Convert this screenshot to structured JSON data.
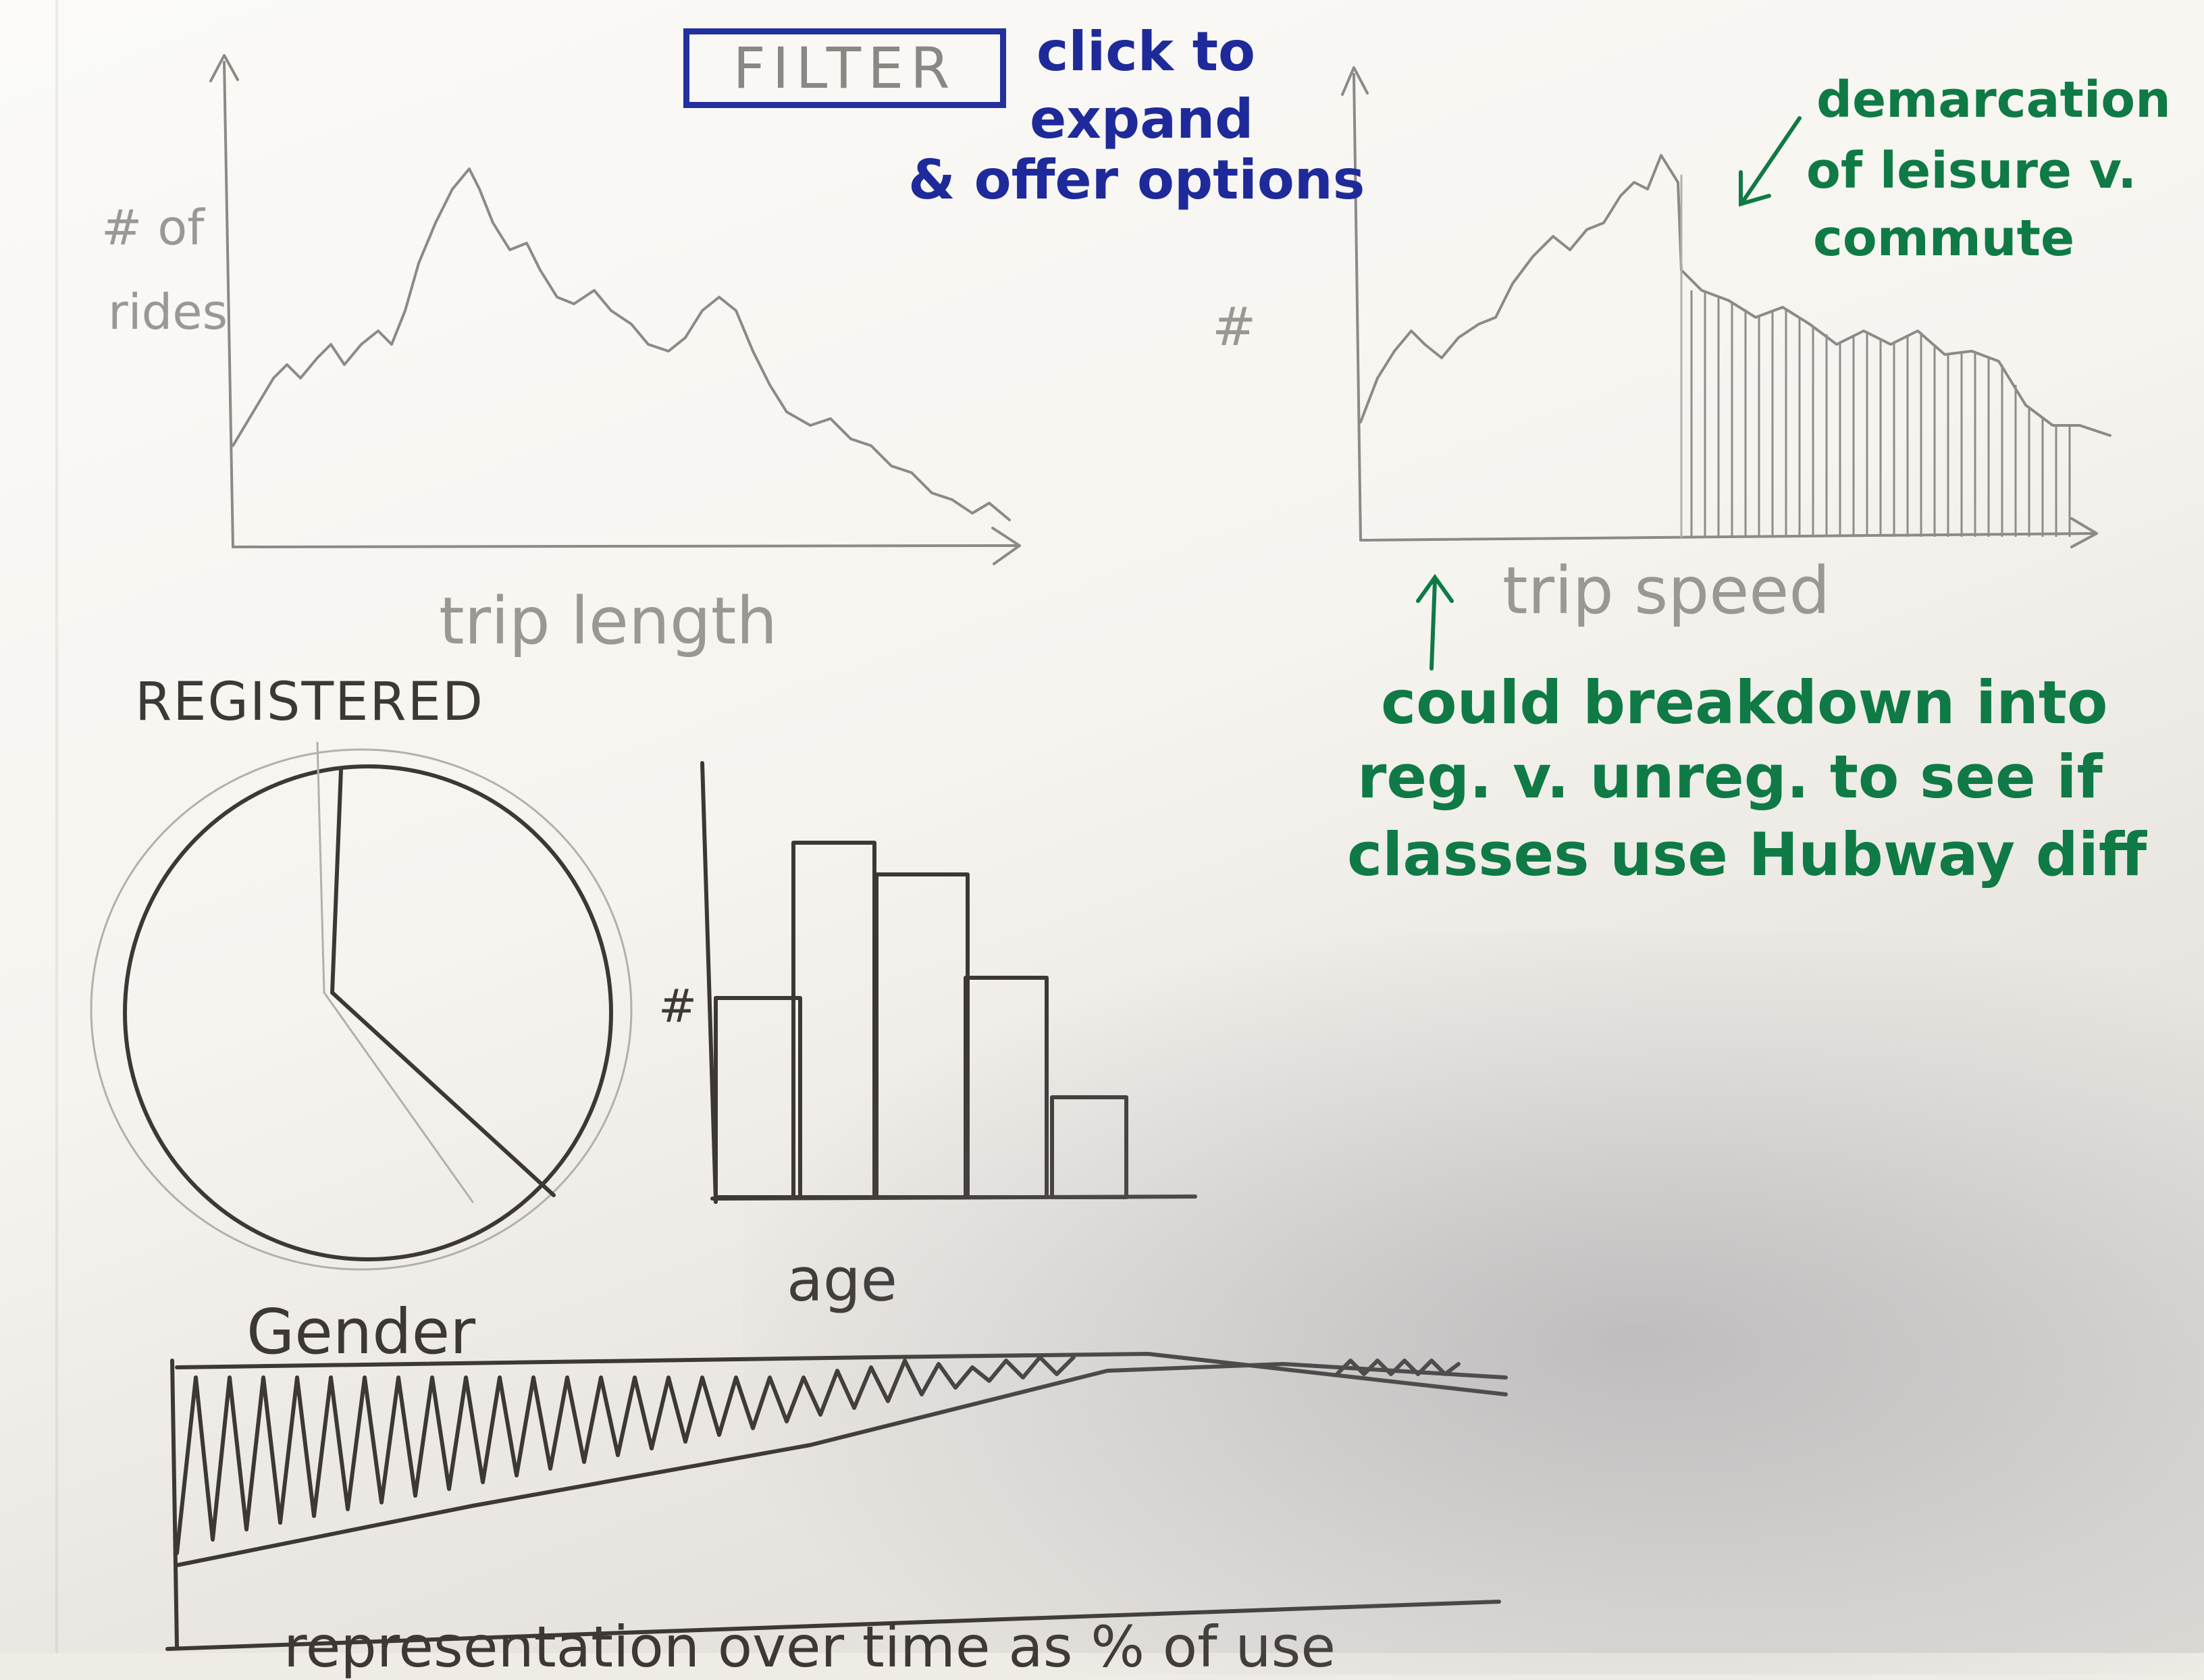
{
  "filter": {
    "button_label": "FILTER",
    "note": [
      "click to",
      "expand",
      "& offer options"
    ]
  },
  "chart_trip_length": {
    "ylabel": [
      "# of",
      "rides"
    ],
    "xlabel": "trip length"
  },
  "chart_trip_speed": {
    "ylabel": "#",
    "xlabel": "trip speed",
    "annotation_demarcation": [
      "demarcation",
      "of leisure v.",
      "commute"
    ],
    "annotation_breakdown": [
      "could breakdown into",
      "reg. v. unreg. to see if",
      "classes use Hubway diff"
    ]
  },
  "pie_chart": {
    "title": "REGISTERED"
  },
  "age_chart": {
    "ylabel": "#",
    "xlabel": "age"
  },
  "gender_chart": {
    "title": "Gender",
    "caption_partial": "representation over time as % of use"
  },
  "colors": {
    "pencil": "#8c8a86",
    "pen": "#3d3835",
    "blue_marker": "#1f2a9a",
    "green_marker": "#0f7a45"
  }
}
